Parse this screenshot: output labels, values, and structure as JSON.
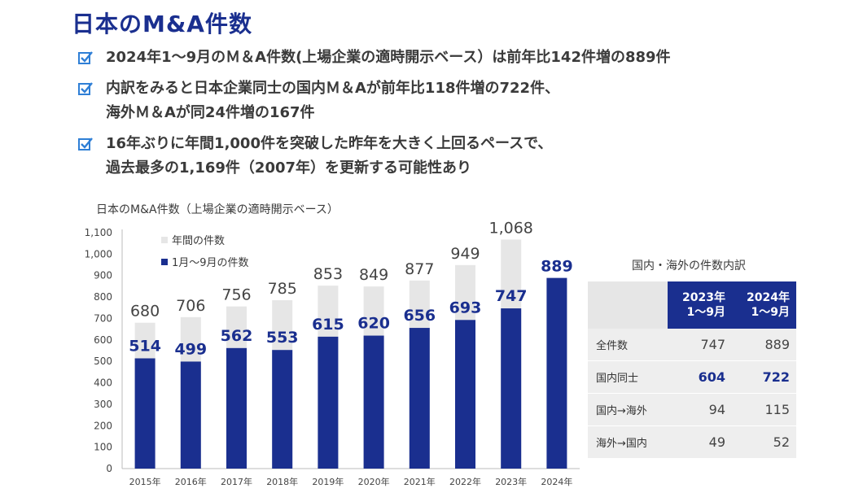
{
  "page_title": "日本のM&A件数",
  "bullets": [
    {
      "lines": [
        "2024年1～9月のＭ＆A件数(上場企業の適時開示ベース）は前年比142件増の889件"
      ]
    },
    {
      "lines": [
        "内訳をみると日本企業同士の国内Ｍ＆Aが前年比118件増の722件、",
        "海外Ｍ＆Aが同24件増の167件"
      ]
    },
    {
      "lines": [
        "16年ぶりに年間1,000件を突破した昨年を大きく上回るペースで、",
        "過去最多の1,169件（2007年）を更新する可能性あり"
      ]
    }
  ],
  "colors": {
    "annual": "#e6e6e6",
    "jan_sep": "#1a2f8f",
    "check": "#2f7fd6"
  },
  "chart_data": {
    "type": "bar",
    "title": "日本のM&A件数（上場企業の適時開示ベース）",
    "categories": [
      "2015年",
      "2016年",
      "2017年",
      "2018年",
      "2019年",
      "2020年",
      "2021年",
      "2022年",
      "2023年",
      "2024年"
    ],
    "series": [
      {
        "name": "年間の件数",
        "values": [
          680,
          706,
          756,
          785,
          853,
          849,
          877,
          949,
          1068,
          null
        ]
      },
      {
        "name": "1月～9月の件数",
        "values": [
          514,
          499,
          562,
          553,
          615,
          620,
          656,
          693,
          747,
          889
        ]
      }
    ],
    "y_ticks": [
      "0",
      "100",
      "200",
      "300",
      "400",
      "500",
      "600",
      "700",
      "800",
      "900",
      "1,000",
      "1,100"
    ],
    "ylim": [
      0,
      1100
    ],
    "annual_labels": [
      "680",
      "706",
      "756",
      "785",
      "853",
      "849",
      "877",
      "949",
      "1,068",
      ""
    ],
    "jan_sep_labels": [
      "514",
      "499",
      "562",
      "553",
      "615",
      "620",
      "656",
      "693",
      "747",
      "889"
    ],
    "legend_position": "top-left"
  },
  "table": {
    "title": "国内・海外の件数内訳",
    "headers": [
      {
        "lines": [
          "2023年",
          "1～9月"
        ]
      },
      {
        "lines": [
          "2024年",
          "1～9月"
        ]
      }
    ],
    "rows": [
      {
        "label": "全件数",
        "v2023": "747",
        "v2024": "889",
        "highlight": false
      },
      {
        "label": "国内同士",
        "v2023": "604",
        "v2024": "722",
        "highlight": true
      },
      {
        "label": "国内→海外",
        "v2023": "94",
        "v2024": "115",
        "highlight": false
      },
      {
        "label": "海外→国内",
        "v2023": "49",
        "v2024": "52",
        "highlight": false
      }
    ]
  }
}
